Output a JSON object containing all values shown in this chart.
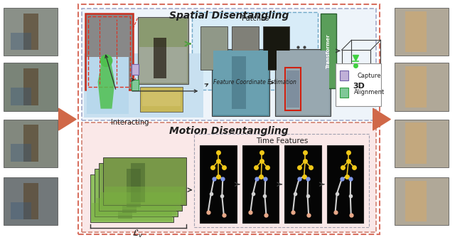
{
  "fig_width": 6.4,
  "fig_height": 3.37,
  "dpi": 100,
  "bg_color": "#ffffff",
  "spatial_title": "Spatial Disentangling",
  "motion_title": "Motion Disentangling",
  "patches_label": "Patches",
  "fce_label": "Feature Coordinate Estimation",
  "transformer_label": "Transformer",
  "threed_label": "3D",
  "interacting_label": "Interacting",
  "time_features_label": "Time Features",
  "lv_label": "$\\mathcal{L}_{v}$",
  "capture_label": "Capture",
  "alignment_label": "Alignment",
  "outer_dash_color": "#d87060",
  "spatial_dash_color": "#a0a8c8",
  "motion_dash_color": "#d08070",
  "patches_dash_color": "#70a8c8",
  "capture_color": "#c0b0d8",
  "alignment_color": "#80c898",
  "transformer_color": "#5a9e5a",
  "fat_arrow_color": "#d06848"
}
